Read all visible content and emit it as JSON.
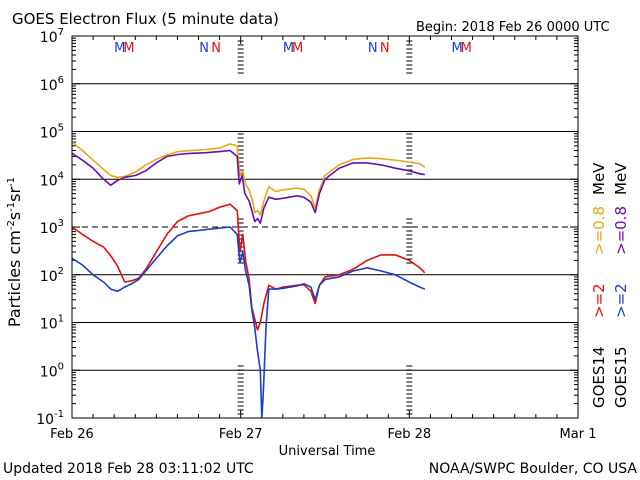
{
  "chart_data": {
    "type": "line",
    "title": "GOES Electron Flux (5 minute data)",
    "begin_label": "Begin: 2018 Feb 26 0000 UTC",
    "xlabel": "Universal Time",
    "ylabel_main": "Particles cm",
    "ylabel_exp1": "-2",
    "ylabel_s": "s",
    "ylabel_exp2": "-1",
    "ylabel_sr": "sr",
    "ylabel_exp3": "-1",
    "y_scale": "log",
    "ylim": [
      0.1,
      10000000
    ],
    "x_range_hours": [
      0,
      72
    ],
    "x_ticks": [
      {
        "hour": 0,
        "label": "Feb 26"
      },
      {
        "hour": 24,
        "label": "Feb 27"
      },
      {
        "hour": 48,
        "label": "Feb 28"
      },
      {
        "hour": 72,
        "label": "Mar 1"
      }
    ],
    "y_ticks": [
      {
        "base": "10",
        "exp": "-1",
        "value": 0.1
      },
      {
        "base": "10",
        "exp": "0",
        "value": 1
      },
      {
        "base": "10",
        "exp": "1",
        "value": 10
      },
      {
        "base": "10",
        "exp": "2",
        "value": 100
      },
      {
        "base": "10",
        "exp": "3",
        "value": 1000
      },
      {
        "base": "10",
        "exp": "4",
        "value": 10000
      },
      {
        "base": "10",
        "exp": "5",
        "value": 100000
      },
      {
        "base": "10",
        "exp": "6",
        "value": 1000000
      },
      {
        "base": "10",
        "exp": "7",
        "value": 10000000
      }
    ],
    "dashed_line_value": 1000,
    "midnight_markers_hours": [
      24,
      48
    ],
    "mn_markers": [
      {
        "hour": 6.8,
        "text": "M",
        "satellite": "GOES14"
      },
      {
        "hour": 8.1,
        "text": "M",
        "satellite": "GOES15"
      },
      {
        "hour": 18.8,
        "text": "N",
        "satellite": "GOES14"
      },
      {
        "hour": 20.5,
        "text": "N",
        "satellite": "GOES15"
      },
      {
        "hour": 30.8,
        "text": "M",
        "satellite": "GOES14"
      },
      {
        "hour": 32.1,
        "text": "M",
        "satellite": "GOES15"
      },
      {
        "hour": 42.8,
        "text": "N",
        "satellite": "GOES14"
      },
      {
        "hour": 44.5,
        "text": "N",
        "satellite": "GOES15"
      },
      {
        "hour": 54.8,
        "text": "M",
        "satellite": "GOES14"
      },
      {
        "hour": 56.1,
        "text": "M",
        "satellite": "GOES15"
      }
    ],
    "legend": {
      "goes14_label": "GOES14",
      "goes15_label": "GOES15",
      "goes14_e2": ">=2",
      "goes15_e2": ">=2",
      "goes14_e08": ">=0.8",
      "goes15_e08": ">=0.8",
      "mev": "MeV"
    },
    "series": [
      {
        "satellite": "GOES14",
        "energy": ">=0.8 MeV",
        "color": "#e6a817",
        "points": [
          [
            0,
            60000
          ],
          [
            1.5,
            40000
          ],
          [
            3,
            25000
          ],
          [
            4.5,
            16000
          ],
          [
            5.5,
            12000
          ],
          [
            6.5,
            11000
          ],
          [
            7.5,
            11500
          ],
          [
            9,
            14000
          ],
          [
            10.5,
            20000
          ],
          [
            12,
            26000
          ],
          [
            13.5,
            32000
          ],
          [
            15,
            38000
          ],
          [
            17,
            40000
          ],
          [
            19,
            42000
          ],
          [
            21,
            45000
          ],
          [
            22.5,
            55000
          ],
          [
            23.5,
            50000
          ],
          [
            23.9,
            12000
          ],
          [
            24.3,
            15000
          ],
          [
            24.7,
            8000
          ],
          [
            25.2,
            6000
          ],
          [
            25.7,
            3500
          ],
          [
            26,
            2000
          ],
          [
            26.4,
            2200
          ],
          [
            26.8,
            1800
          ],
          [
            27.3,
            3500
          ],
          [
            28,
            7000
          ],
          [
            29,
            5500
          ],
          [
            30,
            6000
          ],
          [
            32,
            6500
          ],
          [
            33,
            6200
          ],
          [
            34,
            4500
          ],
          [
            34.6,
            2500
          ],
          [
            35.2,
            6000
          ],
          [
            36,
            12000
          ],
          [
            38,
            20000
          ],
          [
            40,
            26000
          ],
          [
            42,
            28000
          ],
          [
            44,
            27000
          ],
          [
            46,
            25000
          ],
          [
            48,
            23000
          ],
          [
            49.5,
            21000
          ],
          [
            50.2,
            18000
          ]
        ]
      },
      {
        "satellite": "GOES15",
        "energy": ">=0.8 MeV",
        "color": "#6a0dad",
        "points": [
          [
            0,
            35000
          ],
          [
            1.5,
            25000
          ],
          [
            3,
            17000
          ],
          [
            4.5,
            10000
          ],
          [
            5.5,
            7500
          ],
          [
            6.5,
            9500
          ],
          [
            7.5,
            11000
          ],
          [
            9,
            12000
          ],
          [
            10.5,
            15000
          ],
          [
            12,
            22000
          ],
          [
            13.5,
            30000
          ],
          [
            15,
            33000
          ],
          [
            17,
            35000
          ],
          [
            19,
            36000
          ],
          [
            21,
            38000
          ],
          [
            22.5,
            40000
          ],
          [
            23.5,
            30000
          ],
          [
            23.8,
            8000
          ],
          [
            24.2,
            12000
          ],
          [
            24.6,
            5000
          ],
          [
            25.2,
            3500
          ],
          [
            25.6,
            2200
          ],
          [
            26,
            1300
          ],
          [
            26.4,
            1500
          ],
          [
            26.8,
            1200
          ],
          [
            27.3,
            2500
          ],
          [
            28,
            4200
          ],
          [
            29,
            3800
          ],
          [
            30,
            4000
          ],
          [
            32,
            4500
          ],
          [
            33,
            4200
          ],
          [
            34,
            3300
          ],
          [
            34.6,
            2000
          ],
          [
            35.2,
            5000
          ],
          [
            36,
            10000
          ],
          [
            38,
            17000
          ],
          [
            40,
            22000
          ],
          [
            42,
            22000
          ],
          [
            44,
            20000
          ],
          [
            46,
            17000
          ],
          [
            48,
            15000
          ],
          [
            49.5,
            13000
          ],
          [
            50.2,
            12500
          ]
        ]
      },
      {
        "satellite": "GOES14",
        "energy": ">=2 MeV",
        "color": "#e01010",
        "points": [
          [
            0,
            1000
          ],
          [
            1.5,
            700
          ],
          [
            3,
            500
          ],
          [
            4.5,
            380
          ],
          [
            5.5,
            250
          ],
          [
            6.5,
            150
          ],
          [
            7.5,
            70
          ],
          [
            8.5,
            75
          ],
          [
            9.5,
            85
          ],
          [
            10.5,
            130
          ],
          [
            12,
            300
          ],
          [
            13.5,
            700
          ],
          [
            15,
            1300
          ],
          [
            16.5,
            1700
          ],
          [
            18,
            1900
          ],
          [
            19.5,
            2100
          ],
          [
            21,
            2600
          ],
          [
            22.5,
            3000
          ],
          [
            23.5,
            2200
          ],
          [
            23.9,
            300
          ],
          [
            24.3,
            700
          ],
          [
            24.7,
            200
          ],
          [
            25.2,
            80
          ],
          [
            25.6,
            20
          ],
          [
            26,
            12
          ],
          [
            26.4,
            7
          ],
          [
            26.8,
            10
          ],
          [
            27.3,
            25
          ],
          [
            28,
            60
          ],
          [
            29,
            50
          ],
          [
            30,
            55
          ],
          [
            32,
            60
          ],
          [
            33,
            62
          ],
          [
            34,
            45
          ],
          [
            34.6,
            25
          ],
          [
            35.2,
            60
          ],
          [
            36,
            90
          ],
          [
            38,
            100
          ],
          [
            40,
            130
          ],
          [
            42,
            200
          ],
          [
            44,
            260
          ],
          [
            46,
            260
          ],
          [
            48,
            200
          ],
          [
            49.5,
            140
          ],
          [
            50.2,
            110
          ]
        ]
      },
      {
        "satellite": "GOES15",
        "energy": ">=2 MeV",
        "color": "#1a3ec8",
        "points": [
          [
            0,
            220
          ],
          [
            1.5,
            160
          ],
          [
            3,
            100
          ],
          [
            4.5,
            70
          ],
          [
            5.5,
            50
          ],
          [
            6.5,
            45
          ],
          [
            7.5,
            55
          ],
          [
            8.5,
            65
          ],
          [
            9.5,
            80
          ],
          [
            10.5,
            120
          ],
          [
            12,
            220
          ],
          [
            13.5,
            400
          ],
          [
            15,
            650
          ],
          [
            16.5,
            800
          ],
          [
            18,
            850
          ],
          [
            19.5,
            900
          ],
          [
            21,
            950
          ],
          [
            22.5,
            1000
          ],
          [
            23.5,
            700
          ],
          [
            23.9,
            180
          ],
          [
            24.3,
            300
          ],
          [
            24.7,
            120
          ],
          [
            25.2,
            60
          ],
          [
            25.6,
            18
          ],
          [
            26,
            8
          ],
          [
            26.4,
            2.5
          ],
          [
            26.8,
            1
          ],
          [
            27,
            0.1
          ],
          [
            27.2,
            0.3
          ],
          [
            27.6,
            8
          ],
          [
            28,
            50
          ],
          [
            29,
            50
          ],
          [
            30,
            52
          ],
          [
            32,
            58
          ],
          [
            33,
            65
          ],
          [
            34,
            55
          ],
          [
            34.6,
            30
          ],
          [
            35.2,
            60
          ],
          [
            36,
            80
          ],
          [
            38,
            90
          ],
          [
            40,
            120
          ],
          [
            42,
            140
          ],
          [
            44,
            120
          ],
          [
            46,
            100
          ],
          [
            48,
            70
          ],
          [
            49.5,
            55
          ],
          [
            50.2,
            50
          ]
        ]
      }
    ]
  },
  "footer": {
    "updated": "Updated 2018 Feb 28 03:11:02 UTC",
    "credit": "NOAA/SWPC Boulder, CO USA"
  },
  "colors": {
    "goes14_e08": "#e6a817",
    "goes15_e08": "#6a0dad",
    "goes14_e2": "#e01010",
    "goes15_e2": "#1a3ec8",
    "marker_m14": "#1a3ec8",
    "marker_m15": "#e01010"
  }
}
